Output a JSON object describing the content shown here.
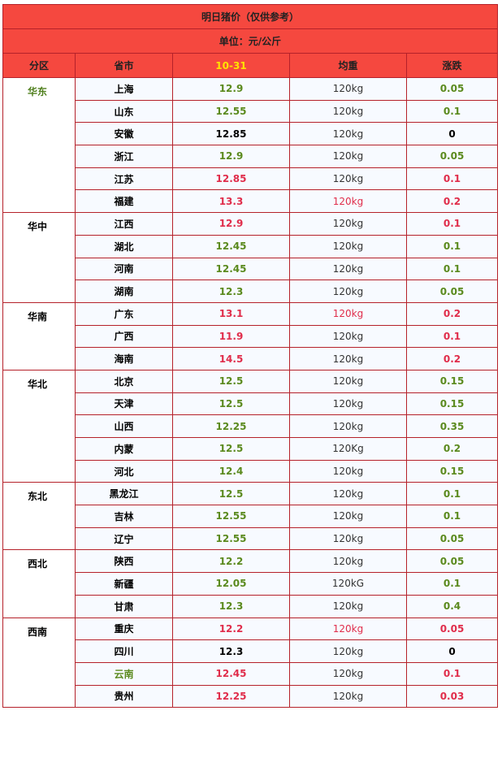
{
  "title": "明日猪价（仅供参考）",
  "unit": "单位：元/公斤",
  "headers": [
    "分区",
    "省市",
    "10-31",
    "均重",
    "涨跌"
  ],
  "regions": [
    {
      "name": "华东",
      "color": "#4f7f1c",
      "rows": [
        {
          "province": "上海",
          "price": "12.9",
          "weight": "120kg",
          "change": "0.05",
          "color": "#5b8a1e"
        },
        {
          "province": "山东",
          "price": "12.55",
          "weight": "120kg",
          "change": "0.1",
          "color": "#5b8a1e"
        },
        {
          "province": "安徽",
          "price": "12.85",
          "weight": "120kg",
          "change": "0",
          "color": "#000000"
        },
        {
          "province": "浙江",
          "price": "12.9",
          "weight": "120kg",
          "change": "0.05",
          "color": "#5b8a1e"
        },
        {
          "province": "江苏",
          "price": "12.85",
          "weight": "120kg",
          "change": "0.1",
          "color": "#e02d4b"
        },
        {
          "province": "福建",
          "price": "13.3",
          "weight": "120kg",
          "change": "0.2",
          "color": "#e02d4b",
          "weight_color": "#e02d4b"
        }
      ]
    },
    {
      "name": "华中",
      "color": "#000000",
      "rows": [
        {
          "province": "江西",
          "price": "12.9",
          "weight": "120kg",
          "change": "0.1",
          "color": "#e02d4b"
        },
        {
          "province": "湖北",
          "price": "12.45",
          "weight": "120kg",
          "change": "0.1",
          "color": "#5b8a1e"
        },
        {
          "province": "河南",
          "price": "12.45",
          "weight": "120kg",
          "change": "0.1",
          "color": "#5b8a1e"
        },
        {
          "province": "湖南",
          "price": "12.3",
          "weight": "120kg",
          "change": "0.05",
          "color": "#5b8a1e"
        }
      ]
    },
    {
      "name": "华南",
      "color": "#000000",
      "rows": [
        {
          "province": "广东",
          "price": "13.1",
          "weight": "120kg",
          "change": "0.2",
          "color": "#e02d4b",
          "weight_color": "#e02d4b"
        },
        {
          "province": "广西",
          "price": "11.9",
          "weight": "120kg",
          "change": "0.1",
          "color": "#e02d4b"
        },
        {
          "province": "海南",
          "price": "14.5",
          "weight": "120kg",
          "change": "0.2",
          "color": "#e02d4b"
        }
      ]
    },
    {
      "name": "华北",
      "color": "#000000",
      "rows": [
        {
          "province": "北京",
          "price": "12.5",
          "weight": "120kg",
          "change": "0.15",
          "color": "#5b8a1e"
        },
        {
          "province": "天津",
          "price": "12.5",
          "weight": "120kg",
          "change": "0.15",
          "color": "#5b8a1e"
        },
        {
          "province": "山西",
          "price": "12.25",
          "weight": "120kg",
          "change": "0.35",
          "color": "#5b8a1e"
        },
        {
          "province": "内蒙",
          "price": "12.5",
          "weight": "120Kg",
          "change": "0.2",
          "color": "#5b8a1e"
        },
        {
          "province": "河北",
          "price": "12.4",
          "weight": "120kg",
          "change": "0.15",
          "color": "#5b8a1e"
        }
      ]
    },
    {
      "name": "东北",
      "color": "#000000",
      "rows": [
        {
          "province": "黑龙江",
          "price": "12.5",
          "weight": "120kg",
          "change": "0.1",
          "color": "#5b8a1e"
        },
        {
          "province": "吉林",
          "price": "12.55",
          "weight": "120kg",
          "change": "0.1",
          "color": "#5b8a1e"
        },
        {
          "province": "辽宁",
          "price": "12.55",
          "weight": "120kg",
          "change": "0.05",
          "color": "#5b8a1e"
        }
      ]
    },
    {
      "name": "西北",
      "color": "#000000",
      "rows": [
        {
          "province": "陕西",
          "price": "12.2",
          "weight": "120kg",
          "change": "0.05",
          "color": "#5b8a1e"
        },
        {
          "province": "新疆",
          "price": "12.05",
          "weight": "120kG",
          "change": "0.1",
          "color": "#5b8a1e"
        },
        {
          "province": "甘肃",
          "price": "12.3",
          "weight": "120kg",
          "change": "0.4",
          "color": "#5b8a1e"
        }
      ]
    },
    {
      "name": "西南",
      "color": "#000000",
      "rows": [
        {
          "province": "重庆",
          "price": "12.2",
          "weight": "120kg",
          "change": "0.05",
          "color": "#e02d4b",
          "weight_color": "#e02d4b"
        },
        {
          "province": "四川",
          "price": "12.3",
          "weight": "120kg",
          "change": "0",
          "color": "#000000"
        },
        {
          "province": "云南",
          "price": "12.45",
          "weight": "120kg",
          "change": "0.1",
          "color": "#e02d4b",
          "province_color": "#5b8a1e"
        },
        {
          "province": "贵州",
          "price": "12.25",
          "weight": "120kg",
          "change": "0.03",
          "color": "#e02d4b"
        }
      ]
    }
  ]
}
